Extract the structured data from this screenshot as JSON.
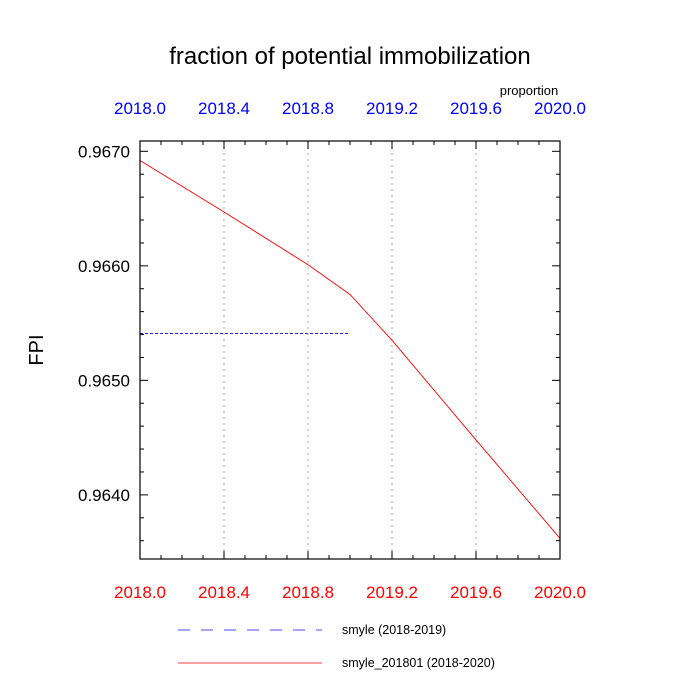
{
  "chart_data": {
    "type": "line",
    "title": "fraction of potential immobilization",
    "ylabel": "FPI",
    "top_axis_units": "proportion",
    "xlim": [
      2018.0,
      2020.0
    ],
    "ylim": [
      0.96344,
      0.96709
    ],
    "x_ticks": [
      "2018.0",
      "2018.4",
      "2018.8",
      "2019.2",
      "2019.6",
      "2020.0"
    ],
    "y_ticks": [
      "0.9640",
      "0.9650",
      "0.9660",
      "0.9670"
    ],
    "grid": "vertical dotted",
    "bottom_axis_color": "#ff0000",
    "top_axis_color": "#0000ff",
    "legend_position": "bottom",
    "series": [
      {
        "name": "smyle (2018-2019)",
        "color": "#0000ff",
        "dash": "dashed",
        "x": [
          2018.0,
          2019.0
        ],
        "y": [
          0.96541,
          0.96541
        ]
      },
      {
        "name": "smyle_201801 (2018-2020)",
        "color": "#ff0000",
        "dash": "solid",
        "x": [
          2018.0,
          2018.4,
          2018.8,
          2019.0,
          2019.2,
          2019.6,
          2020.0
        ],
        "y": [
          0.96692,
          0.96647,
          0.96601,
          0.96575,
          0.96535,
          0.96448,
          0.96362
        ]
      }
    ]
  }
}
